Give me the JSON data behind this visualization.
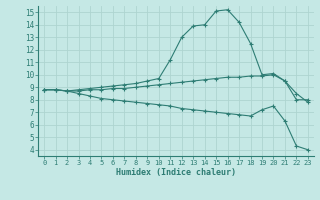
{
  "xlabel": "Humidex (Indice chaleur)",
  "bg_color": "#c5e8e5",
  "grid_color": "#aed4d0",
  "line_color": "#2e7d74",
  "xlim": [
    -0.5,
    23.5
  ],
  "ylim": [
    3.5,
    15.5
  ],
  "xticks": [
    0,
    1,
    2,
    3,
    4,
    5,
    6,
    7,
    8,
    9,
    10,
    11,
    12,
    13,
    14,
    15,
    16,
    17,
    18,
    19,
    20,
    21,
    22,
    23
  ],
  "yticks": [
    4,
    5,
    6,
    7,
    8,
    9,
    10,
    11,
    12,
    13,
    14,
    15
  ],
  "line1_x": [
    0,
    1,
    2,
    3,
    4,
    5,
    6,
    7,
    8,
    9,
    10,
    11,
    12,
    13,
    14,
    15,
    16,
    17,
    18,
    19,
    20,
    21,
    22,
    23
  ],
  "line1_y": [
    8.8,
    8.8,
    8.7,
    8.8,
    8.9,
    9.0,
    9.1,
    9.2,
    9.3,
    9.5,
    9.7,
    11.2,
    13.0,
    13.9,
    14.0,
    15.1,
    15.2,
    14.2,
    12.5,
    10.0,
    10.1,
    9.5,
    8.0,
    8.0
  ],
  "line2_x": [
    0,
    1,
    2,
    3,
    4,
    5,
    6,
    7,
    8,
    9,
    10,
    11,
    12,
    13,
    14,
    15,
    16,
    17,
    18,
    19,
    20,
    21,
    22,
    23
  ],
  "line2_y": [
    8.8,
    8.8,
    8.7,
    8.7,
    8.8,
    8.8,
    8.9,
    8.9,
    9.0,
    9.1,
    9.2,
    9.3,
    9.4,
    9.5,
    9.6,
    9.7,
    9.8,
    9.8,
    9.9,
    9.9,
    10.0,
    9.5,
    8.5,
    7.8
  ],
  "line3_x": [
    0,
    1,
    2,
    3,
    4,
    5,
    6,
    7,
    8,
    9,
    10,
    11,
    12,
    13,
    14,
    15,
    16,
    17,
    18,
    19,
    20,
    21,
    22,
    23
  ],
  "line3_y": [
    8.8,
    8.8,
    8.7,
    8.5,
    8.3,
    8.1,
    8.0,
    7.9,
    7.8,
    7.7,
    7.6,
    7.5,
    7.3,
    7.2,
    7.1,
    7.0,
    6.9,
    6.8,
    6.7,
    7.2,
    7.5,
    6.3,
    4.3,
    4.0
  ]
}
